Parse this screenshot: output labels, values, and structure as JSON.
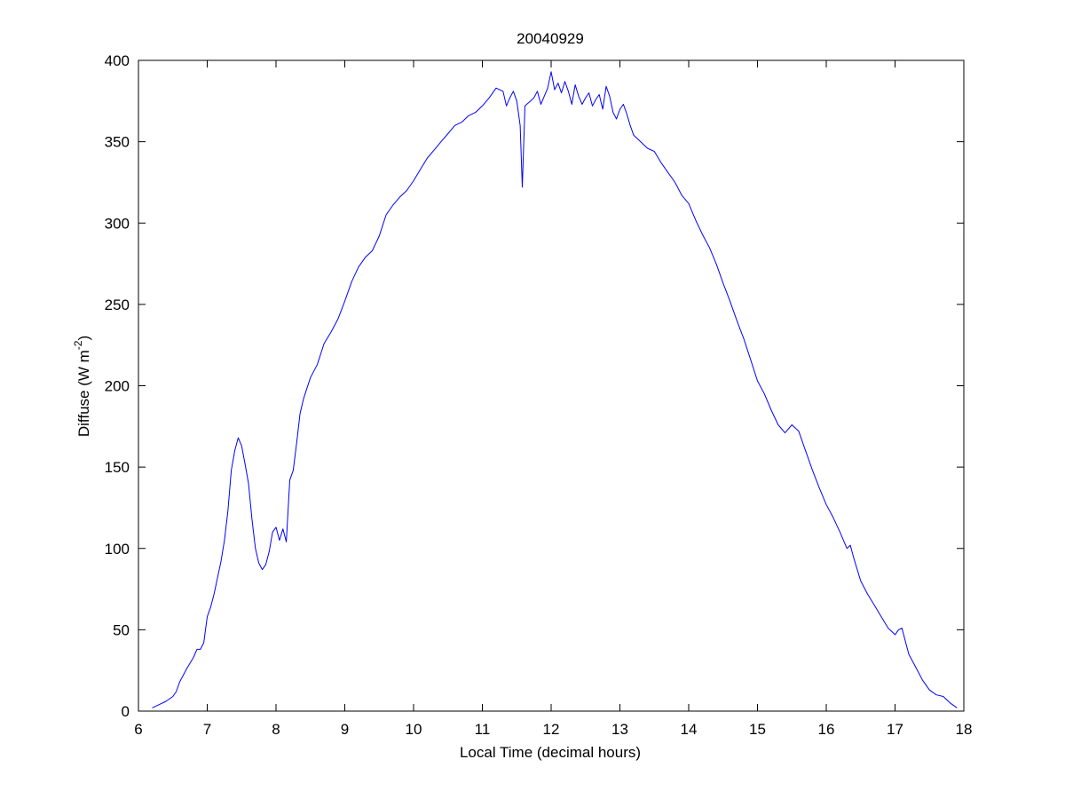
{
  "chart_data": {
    "type": "line",
    "title": "20040929",
    "xlabel": "Local Time (decimal hours)",
    "ylabel": {
      "prefix": "Diffuse (W m",
      "superscript": "-2",
      "suffix": ")"
    },
    "xlim": [
      6,
      18
    ],
    "ylim": [
      0,
      400
    ],
    "xticks": [
      6,
      7,
      8,
      9,
      10,
      11,
      12,
      13,
      14,
      15,
      16,
      17,
      18
    ],
    "yticks": [
      0,
      50,
      100,
      150,
      200,
      250,
      300,
      350,
      400
    ],
    "grid": false,
    "line_color": "#0000ff",
    "series": [
      {
        "points": [
          [
            6.2,
            2
          ],
          [
            6.3,
            4
          ],
          [
            6.4,
            6
          ],
          [
            6.5,
            9
          ],
          [
            6.55,
            12
          ],
          [
            6.6,
            18
          ],
          [
            6.7,
            26
          ],
          [
            6.8,
            33
          ],
          [
            6.85,
            38
          ],
          [
            6.9,
            38
          ],
          [
            6.95,
            42
          ],
          [
            7.0,
            58
          ],
          [
            7.05,
            64
          ],
          [
            7.1,
            72
          ],
          [
            7.15,
            82
          ],
          [
            7.2,
            92
          ],
          [
            7.25,
            105
          ],
          [
            7.3,
            123
          ],
          [
            7.35,
            148
          ],
          [
            7.4,
            160
          ],
          [
            7.45,
            168
          ],
          [
            7.5,
            163
          ],
          [
            7.55,
            152
          ],
          [
            7.6,
            140
          ],
          [
            7.65,
            118
          ],
          [
            7.7,
            100
          ],
          [
            7.75,
            91
          ],
          [
            7.8,
            87
          ],
          [
            7.85,
            90
          ],
          [
            7.9,
            98
          ],
          [
            7.95,
            110
          ],
          [
            8.0,
            113
          ],
          [
            8.05,
            105
          ],
          [
            8.1,
            112
          ],
          [
            8.15,
            104
          ],
          [
            8.2,
            142
          ],
          [
            8.25,
            148
          ],
          [
            8.3,
            165
          ],
          [
            8.35,
            183
          ],
          [
            8.4,
            192
          ],
          [
            8.5,
            205
          ],
          [
            8.6,
            213
          ],
          [
            8.7,
            226
          ],
          [
            8.8,
            233
          ],
          [
            8.9,
            241
          ],
          [
            9.0,
            252
          ],
          [
            9.1,
            264
          ],
          [
            9.2,
            273
          ],
          [
            9.3,
            279
          ],
          [
            9.4,
            283
          ],
          [
            9.5,
            292
          ],
          [
            9.6,
            305
          ],
          [
            9.7,
            311
          ],
          [
            9.8,
            316
          ],
          [
            9.9,
            320
          ],
          [
            10.0,
            326
          ],
          [
            10.1,
            333
          ],
          [
            10.2,
            340
          ],
          [
            10.3,
            345
          ],
          [
            10.4,
            350
          ],
          [
            10.5,
            355
          ],
          [
            10.6,
            360
          ],
          [
            10.7,
            362
          ],
          [
            10.8,
            366
          ],
          [
            10.9,
            368
          ],
          [
            11.0,
            372
          ],
          [
            11.1,
            377
          ],
          [
            11.2,
            383
          ],
          [
            11.3,
            381
          ],
          [
            11.35,
            372
          ],
          [
            11.4,
            377
          ],
          [
            11.45,
            381
          ],
          [
            11.5,
            375
          ],
          [
            11.55,
            360
          ],
          [
            11.58,
            322
          ],
          [
            11.62,
            372
          ],
          [
            11.7,
            375
          ],
          [
            11.75,
            377
          ],
          [
            11.8,
            381
          ],
          [
            11.85,
            373
          ],
          [
            11.9,
            378
          ],
          [
            11.95,
            383
          ],
          [
            12.0,
            393
          ],
          [
            12.05,
            382
          ],
          [
            12.1,
            386
          ],
          [
            12.15,
            380
          ],
          [
            12.2,
            387
          ],
          [
            12.25,
            381
          ],
          [
            12.3,
            373
          ],
          [
            12.35,
            385
          ],
          [
            12.4,
            378
          ],
          [
            12.45,
            373
          ],
          [
            12.5,
            377
          ],
          [
            12.55,
            380
          ],
          [
            12.6,
            372
          ],
          [
            12.65,
            376
          ],
          [
            12.7,
            379
          ],
          [
            12.75,
            370
          ],
          [
            12.8,
            384
          ],
          [
            12.85,
            378
          ],
          [
            12.9,
            368
          ],
          [
            12.95,
            364
          ],
          [
            13.0,
            370
          ],
          [
            13.05,
            373
          ],
          [
            13.1,
            367
          ],
          [
            13.15,
            360
          ],
          [
            13.2,
            354
          ],
          [
            13.3,
            350
          ],
          [
            13.4,
            346
          ],
          [
            13.5,
            344
          ],
          [
            13.6,
            337
          ],
          [
            13.7,
            331
          ],
          [
            13.8,
            325
          ],
          [
            13.9,
            317
          ],
          [
            14.0,
            312
          ],
          [
            14.1,
            302
          ],
          [
            14.2,
            293
          ],
          [
            14.3,
            285
          ],
          [
            14.4,
            275
          ],
          [
            14.5,
            263
          ],
          [
            14.6,
            252
          ],
          [
            14.7,
            240
          ],
          [
            14.8,
            229
          ],
          [
            14.9,
            216
          ],
          [
            15.0,
            203
          ],
          [
            15.1,
            195
          ],
          [
            15.2,
            185
          ],
          [
            15.3,
            176
          ],
          [
            15.4,
            171
          ],
          [
            15.5,
            176
          ],
          [
            15.6,
            172
          ],
          [
            15.7,
            160
          ],
          [
            15.8,
            148
          ],
          [
            15.9,
            137
          ],
          [
            16.0,
            127
          ],
          [
            16.1,
            119
          ],
          [
            16.2,
            110
          ],
          [
            16.3,
            100
          ],
          [
            16.35,
            102
          ],
          [
            16.4,
            94
          ],
          [
            16.5,
            80
          ],
          [
            16.6,
            72
          ],
          [
            16.7,
            65
          ],
          [
            16.8,
            58
          ],
          [
            16.9,
            51
          ],
          [
            17.0,
            47
          ],
          [
            17.05,
            50
          ],
          [
            17.1,
            51
          ],
          [
            17.15,
            43
          ],
          [
            17.2,
            35
          ],
          [
            17.3,
            27
          ],
          [
            17.4,
            19
          ],
          [
            17.5,
            13
          ],
          [
            17.6,
            10
          ],
          [
            17.7,
            9
          ],
          [
            17.8,
            5
          ],
          [
            17.9,
            2
          ]
        ]
      }
    ]
  }
}
